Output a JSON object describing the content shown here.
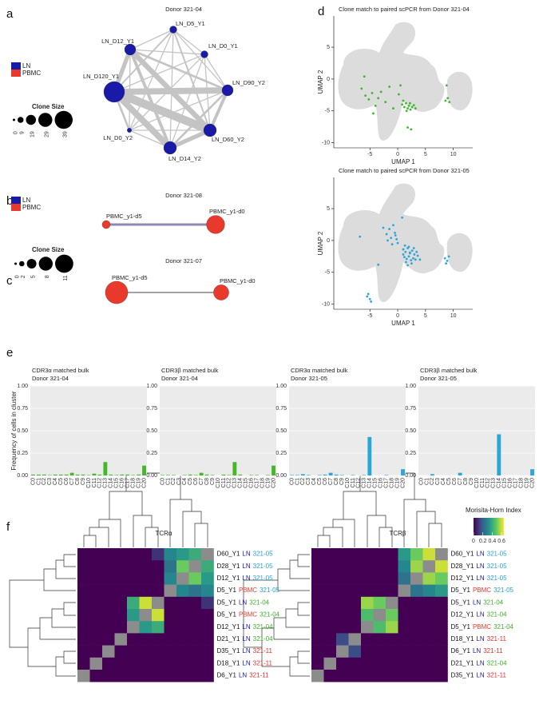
{
  "panel_labels": [
    "a",
    "b",
    "c",
    "d",
    "e",
    "f"
  ],
  "tissue_legend": [
    {
      "name": "LN",
      "color": "#1a1aa8"
    },
    {
      "name": "PBMC",
      "color": "#e8392c"
    }
  ],
  "networks": [
    {
      "title": "Donor 321-04",
      "clone_size_title": "Clone Size",
      "clone_size_ticks": [
        0,
        9,
        19,
        29,
        39
      ],
      "edge_color": "#c4c4c4",
      "nodes": [
        {
          "label": "LN_D5_Y1",
          "tissue": "LN",
          "size": 12
        },
        {
          "label": "LN_D12_Y1",
          "tissue": "LN",
          "size": 22
        },
        {
          "label": "LN_D0_Y1",
          "tissue": "LN",
          "size": 12
        },
        {
          "label": "LN_D120_Y1",
          "tissue": "LN",
          "size": 46
        },
        {
          "label": "LN_D90_Y2",
          "tissue": "LN",
          "size": 22
        },
        {
          "label": "LN_D0_Y2",
          "tissue": "LN",
          "size": 5
        },
        {
          "label": "LN_D60_Y2",
          "tissue": "LN",
          "size": 26
        },
        {
          "label": "LN_D14_Y2",
          "tissue": "LN",
          "size": 26
        }
      ],
      "edges": [
        [
          0,
          1,
          1
        ],
        [
          0,
          2,
          1
        ],
        [
          0,
          3,
          1.5
        ],
        [
          0,
          4,
          1
        ],
        [
          0,
          5,
          1
        ],
        [
          0,
          6,
          1.5
        ],
        [
          0,
          7,
          1
        ],
        [
          1,
          2,
          1
        ],
        [
          1,
          3,
          4
        ],
        [
          1,
          4,
          2
        ],
        [
          1,
          5,
          1
        ],
        [
          1,
          6,
          5
        ],
        [
          1,
          7,
          3
        ],
        [
          2,
          3,
          1
        ],
        [
          2,
          4,
          1
        ],
        [
          2,
          5,
          1
        ],
        [
          2,
          6,
          1
        ],
        [
          2,
          7,
          1
        ],
        [
          3,
          4,
          6
        ],
        [
          3,
          5,
          2
        ],
        [
          3,
          6,
          8
        ],
        [
          3,
          7,
          6
        ],
        [
          4,
          5,
          1
        ],
        [
          4,
          6,
          3
        ],
        [
          4,
          7,
          2
        ],
        [
          5,
          6,
          1
        ],
        [
          5,
          7,
          1
        ],
        [
          6,
          7,
          4
        ]
      ]
    },
    {
      "title": "Donor 321-08",
      "clone_size_title": "Clone Size",
      "clone_size_ticks": [
        0,
        2,
        5,
        8,
        11
      ],
      "edge_color": "#8a8ab5",
      "nodes": [
        {
          "label": "PBMC_y1-d5",
          "tissue": "PBMC",
          "size": 4
        },
        {
          "label": "PBMC_y1-d0",
          "tissue": "PBMC",
          "size": 11
        }
      ],
      "edges": [
        [
          0,
          1,
          3
        ]
      ]
    },
    {
      "title": "Donor 321-07",
      "edge_color": "#444444",
      "nodes": [
        {
          "label": "PBMC_y1-d5",
          "tissue": "PBMC",
          "size": 14
        },
        {
          "label": "PBMC_y1-d0",
          "tissue": "PBMC",
          "size": 9
        }
      ],
      "edges": [
        [
          0,
          1,
          1
        ]
      ]
    }
  ],
  "chart_data": [
    {
      "type": "scatter",
      "title": "Clone match to paired scPCR from Donor 321-04",
      "xlabel": "UMAP 1",
      "ylabel": "UMAP 2",
      "xlim": [
        -11.5,
        13.5
      ],
      "ylim": [
        -10.8,
        9.9
      ],
      "xticks": [
        -5,
        0,
        5,
        10
      ],
      "yticks": [
        -10,
        -5,
        0,
        5
      ],
      "color": "#3cb82a",
      "x": [
        -6.5,
        -5.8,
        -5.2,
        -4.6,
        -4.0,
        -3.5,
        -3.0,
        -2.2,
        -1.5,
        -0.8,
        0.2,
        0.8,
        1.2,
        1.5,
        1.8,
        2.0,
        2.3,
        2.6,
        2.9,
        3.2,
        1.0,
        1.6,
        2.2,
        1.8,
        2.4,
        8.6,
        9.0,
        9.3,
        8.8,
        -4.4,
        -6.0,
        0.5
      ],
      "y": [
        -1.5,
        -2.6,
        -3.2,
        -2.2,
        -4.2,
        -3.0,
        -2.0,
        -3.6,
        -1.2,
        -4.6,
        -2.4,
        -4.0,
        -4.4,
        -3.8,
        -4.6,
        -4.2,
        -4.8,
        -4.4,
        -4.1,
        -4.6,
        -3.4,
        -5.0,
        -3.8,
        -7.6,
        -7.9,
        -3.4,
        -3.0,
        -3.6,
        -1.0,
        -5.4,
        0.4,
        -1.0
      ]
    },
    {
      "type": "scatter",
      "title": "Clone match to paired scPCR from Donor 321-05",
      "xlabel": "UMAP 1",
      "ylabel": "UMAP 2",
      "xlim": [
        -11.5,
        13.5
      ],
      "ylim": [
        -10.8,
        9.9
      ],
      "xticks": [
        -5,
        0,
        5,
        10
      ],
      "yticks": [
        -10,
        -5,
        0,
        5
      ],
      "color": "#2ba6d9",
      "x": [
        -2.0,
        -1.5,
        -1.2,
        -0.8,
        -0.5,
        -0.2,
        0.0,
        -1.0,
        -1.8,
        -0.4,
        1.0,
        1.4,
        1.8,
        2.2,
        2.6,
        3.0,
        3.4,
        1.2,
        1.6,
        2.0,
        2.4,
        2.8,
        3.2,
        1.5,
        2.5,
        3.6,
        2.0,
        1.0,
        2.9,
        1.8,
        8.5,
        8.9,
        9.2,
        8.7,
        -5.5,
        -5.0,
        -5.3,
        -4.8,
        -3.5,
        -6.8,
        0.8,
        -2.6,
        4.0,
        1.3,
        2.2
      ],
      "y": [
        1.0,
        1.8,
        0.4,
        2.4,
        1.2,
        0.2,
        -0.4,
        -0.6,
        0.0,
        0.8,
        -1.4,
        -1.8,
        -1.2,
        -2.0,
        -1.6,
        -2.2,
        -1.8,
        -2.6,
        -2.9,
        -2.5,
        -3.1,
        -2.8,
        -3.0,
        -3.4,
        -3.6,
        -2.4,
        -1.0,
        -2.2,
        -1.2,
        -3.9,
        -2.8,
        -3.2,
        -2.5,
        -3.6,
        -8.8,
        -9.2,
        -8.4,
        -9.6,
        -3.8,
        0.6,
        3.6,
        2.0,
        -3.0,
        -0.8,
        -1.9
      ]
    },
    {
      "type": "bar",
      "title": "CDR3α matched bulk",
      "subtitle": "Donor 321-04",
      "ylabel": "Frequency of cells in cluster",
      "color": "#44b82b",
      "categories": [
        "C0",
        "C1",
        "C2",
        "C3",
        "C4",
        "C5",
        "C6",
        "C7",
        "C8",
        "C9",
        "C10",
        "C11",
        "C12",
        "C13",
        "C14",
        "C15",
        "C16",
        "C17",
        "C18",
        "C19",
        "C20"
      ],
      "values": [
        0.01,
        0.01,
        0.01,
        0.005,
        0.01,
        0.01,
        0.01,
        0.03,
        0.01,
        0.01,
        0.005,
        0.02,
        0.01,
        0.15,
        0.01,
        0.005,
        0.01,
        0.01,
        0.005,
        0.01,
        0.11
      ],
      "ylim": [
        0,
        1
      ],
      "yticks": [
        {
          "value": 0,
          "label": "0.00"
        },
        {
          "value": 0.25,
          "label": "0.25"
        },
        {
          "value": 0.5,
          "label": "0.50"
        },
        {
          "value": 0.75,
          "label": "0.75"
        },
        {
          "value": 1,
          "label": "1.00"
        }
      ]
    },
    {
      "type": "bar",
      "title": "CDR3β matched bulk",
      "subtitle": "Donor 321-04",
      "color": "#44b82b",
      "categories": [
        "C0",
        "C1",
        "C2",
        "C3",
        "C4",
        "C5",
        "C6",
        "C7",
        "C8",
        "C9",
        "C10",
        "C11",
        "C12",
        "C13",
        "C14",
        "C15",
        "C16",
        "C17",
        "C18",
        "C19",
        "C20"
      ],
      "values": [
        0.005,
        0.005,
        0.005,
        0,
        0.005,
        0.01,
        0.005,
        0.03,
        0.01,
        0.005,
        0,
        0.01,
        0.005,
        0.15,
        0.01,
        0,
        0.005,
        0.005,
        0,
        0.005,
        0.11
      ],
      "ylim": [
        0,
        1
      ],
      "yticks": [
        {
          "value": 0,
          "label": "0.00"
        },
        {
          "value": 0.25,
          "label": "0.25"
        },
        {
          "value": 0.5,
          "label": "0.50"
        },
        {
          "value": 0.75,
          "label": "0.75"
        },
        {
          "value": 1,
          "label": "1.00"
        }
      ]
    },
    {
      "type": "bar",
      "title": "CDR3α matched bulk",
      "subtitle": "Donor 321-05",
      "color": "#2ba6d9",
      "categories": [
        "C0",
        "C1",
        "C2",
        "C3",
        "C4",
        "C5",
        "C6",
        "C7",
        "C8",
        "C9",
        "C10",
        "C11",
        "C12",
        "C13",
        "C14",
        "C15",
        "C16",
        "C17",
        "C18",
        "C19",
        "C20"
      ],
      "values": [
        0.005,
        0.005,
        0.015,
        0.005,
        0,
        0.005,
        0.01,
        0.03,
        0.01,
        0.005,
        0,
        0.005,
        0,
        0.005,
        0.43,
        0,
        0,
        0.005,
        0,
        0,
        0.07
      ],
      "ylim": [
        0,
        1
      ],
      "yticks": [
        {
          "value": 0,
          "label": "0.00"
        },
        {
          "value": 0.25,
          "label": "0.25"
        },
        {
          "value": 0.5,
          "label": "0.50"
        },
        {
          "value": 0.75,
          "label": "0.75"
        },
        {
          "value": 1,
          "label": "1.00"
        }
      ]
    },
    {
      "type": "bar",
      "title": "CDR3β matched bulk",
      "subtitle": "Donor 321-05",
      "color": "#2ba6d9",
      "categories": [
        "C0",
        "C1",
        "C2",
        "C3",
        "C4",
        "C5",
        "C6",
        "C7",
        "C8",
        "C9",
        "C10",
        "C11",
        "C12",
        "C13",
        "C14",
        "C15",
        "C16",
        "C17",
        "C18",
        "C19",
        "C20"
      ],
      "values": [
        0,
        0,
        0.015,
        0,
        0,
        0,
        0,
        0.03,
        0,
        0,
        0,
        0,
        0,
        0,
        0.46,
        0,
        0,
        0,
        0,
        0,
        0.07
      ],
      "ylim": [
        0,
        1
      ],
      "yticks": [
        {
          "value": 0,
          "label": "0.00"
        },
        {
          "value": 0.25,
          "label": "0.25"
        },
        {
          "value": 0.5,
          "label": "0.50"
        },
        {
          "value": 0.75,
          "label": "0.75"
        },
        {
          "value": 1,
          "label": "1.00"
        }
      ]
    },
    {
      "type": "heatmap",
      "title": "TCRα",
      "rows": [
        {
          "sample": "D60_Y1",
          "tissue": "LN",
          "donor": "321-05"
        },
        {
          "sample": "D28_Y1",
          "tissue": "LN",
          "donor": "321-05"
        },
        {
          "sample": "D12_Y1",
          "tissue": "LN",
          "donor": "321-05"
        },
        {
          "sample": "D5_Y1",
          "tissue": "PBMC",
          "donor": "321-05"
        },
        {
          "sample": "D5_Y1",
          "tissue": "LN",
          "donor": "321-04"
        },
        {
          "sample": "D5_Y1",
          "tissue": "PBMC",
          "donor": "321-04"
        },
        {
          "sample": "D12_Y1",
          "tissue": "LN",
          "donor": "321-04"
        },
        {
          "sample": "D21_Y1",
          "tissue": "LN",
          "donor": "321-04"
        },
        {
          "sample": "D35_Y1",
          "tissue": "LN",
          "donor": "321-11"
        },
        {
          "sample": "D18_Y1",
          "tissue": "LN",
          "donor": "321-11"
        },
        {
          "sample": "D6_Y1",
          "tissue": "LN",
          "donor": "321-11"
        }
      ],
      "values": [
        [
          0,
          0,
          0,
          0,
          0,
          0,
          0.1,
          0.3,
          0.35,
          0.4,
          null
        ],
        [
          0,
          0,
          0,
          0,
          0,
          0,
          0,
          0.25,
          0.5,
          null,
          0.4
        ],
        [
          0,
          0,
          0,
          0,
          0,
          0,
          0,
          0.3,
          null,
          0.5,
          0.35
        ],
        [
          0,
          0,
          0,
          0,
          0,
          0,
          0,
          null,
          0.3,
          0.25,
          0.3
        ],
        [
          0,
          0,
          0,
          0,
          0.4,
          0.6,
          null,
          0,
          0,
          0,
          0.1
        ],
        [
          0,
          0,
          0,
          0,
          0.35,
          null,
          0.6,
          0,
          0,
          0,
          0
        ],
        [
          0,
          0,
          0,
          0,
          null,
          0.35,
          0.4,
          0,
          0,
          0,
          0
        ],
        [
          0,
          0,
          0,
          null,
          0,
          0,
          0,
          0,
          0,
          0,
          0
        ],
        [
          0,
          0,
          null,
          0,
          0,
          0,
          0,
          0,
          0,
          0,
          0
        ],
        [
          0,
          null,
          0,
          0,
          0,
          0,
          0,
          0,
          0,
          0,
          0
        ],
        [
          null,
          0,
          0,
          0,
          0,
          0,
          0,
          0,
          0,
          0,
          0
        ]
      ]
    },
    {
      "type": "heatmap",
      "title": "TCRβ",
      "rows": [
        {
          "sample": "D60_Y1",
          "tissue": "LN",
          "donor": "321-05"
        },
        {
          "sample": "D28_Y1",
          "tissue": "LN",
          "donor": "321-05"
        },
        {
          "sample": "D12_Y1",
          "tissue": "LN",
          "donor": "321-05"
        },
        {
          "sample": "D5_Y1",
          "tissue": "PBMC",
          "donor": "321-05"
        },
        {
          "sample": "D5_Y1",
          "tissue": "LN",
          "donor": "321-04"
        },
        {
          "sample": "D12_Y1",
          "tissue": "LN",
          "donor": "321-04"
        },
        {
          "sample": "D5_Y1",
          "tissue": "PBMC",
          "donor": "321-04"
        },
        {
          "sample": "D18_Y1",
          "tissue": "LN",
          "donor": "321-11"
        },
        {
          "sample": "D6_Y1",
          "tissue": "LN",
          "donor": "321-11"
        },
        {
          "sample": "D21_Y1",
          "tissue": "LN",
          "donor": "321-04"
        },
        {
          "sample": "D35_Y1",
          "tissue": "LN",
          "donor": "321-11"
        }
      ],
      "values": [
        [
          0,
          0,
          0,
          0,
          0,
          0,
          0,
          0.35,
          0.5,
          0.6,
          null
        ],
        [
          0,
          0,
          0,
          0,
          0,
          0,
          0,
          0.3,
          0.55,
          null,
          0.6
        ],
        [
          0,
          0,
          0,
          0,
          0,
          0,
          0,
          0.25,
          null,
          0.55,
          0.5
        ],
        [
          0,
          0,
          0,
          0,
          0,
          0,
          0,
          null,
          0.25,
          0.3,
          0.35
        ],
        [
          0,
          0,
          0,
          0,
          0.55,
          0.5,
          null,
          0,
          0,
          0,
          0
        ],
        [
          0,
          0,
          0,
          0,
          0.45,
          null,
          0.5,
          0,
          0,
          0,
          0
        ],
        [
          0,
          0,
          0,
          0,
          null,
          0.45,
          0.55,
          0,
          0,
          0,
          0
        ],
        [
          0,
          0,
          0.15,
          null,
          0,
          0,
          0,
          0,
          0,
          0,
          0
        ],
        [
          0,
          0,
          null,
          0.15,
          0,
          0,
          0,
          0,
          0,
          0,
          0
        ],
        [
          0,
          null,
          0,
          0,
          0,
          0,
          0,
          0,
          0,
          0,
          0
        ],
        [
          null,
          0,
          0,
          0,
          0,
          0,
          0,
          0,
          0,
          0,
          0
        ]
      ]
    }
  ],
  "donor_colors": {
    "321-05": "#2a9fd6",
    "321-04": "#3fae2a",
    "321-11": "#e0302a"
  },
  "colorbar": {
    "title": "Morisita-Horn Index",
    "lim": [
      0,
      0.65
    ],
    "ticks": [
      0,
      0.2,
      0.4,
      0.6
    ],
    "colormap": [
      "#440154",
      "#3b528b",
      "#21908d",
      "#5dc963",
      "#fde725"
    ],
    "na_color": "#8c8c8c"
  }
}
